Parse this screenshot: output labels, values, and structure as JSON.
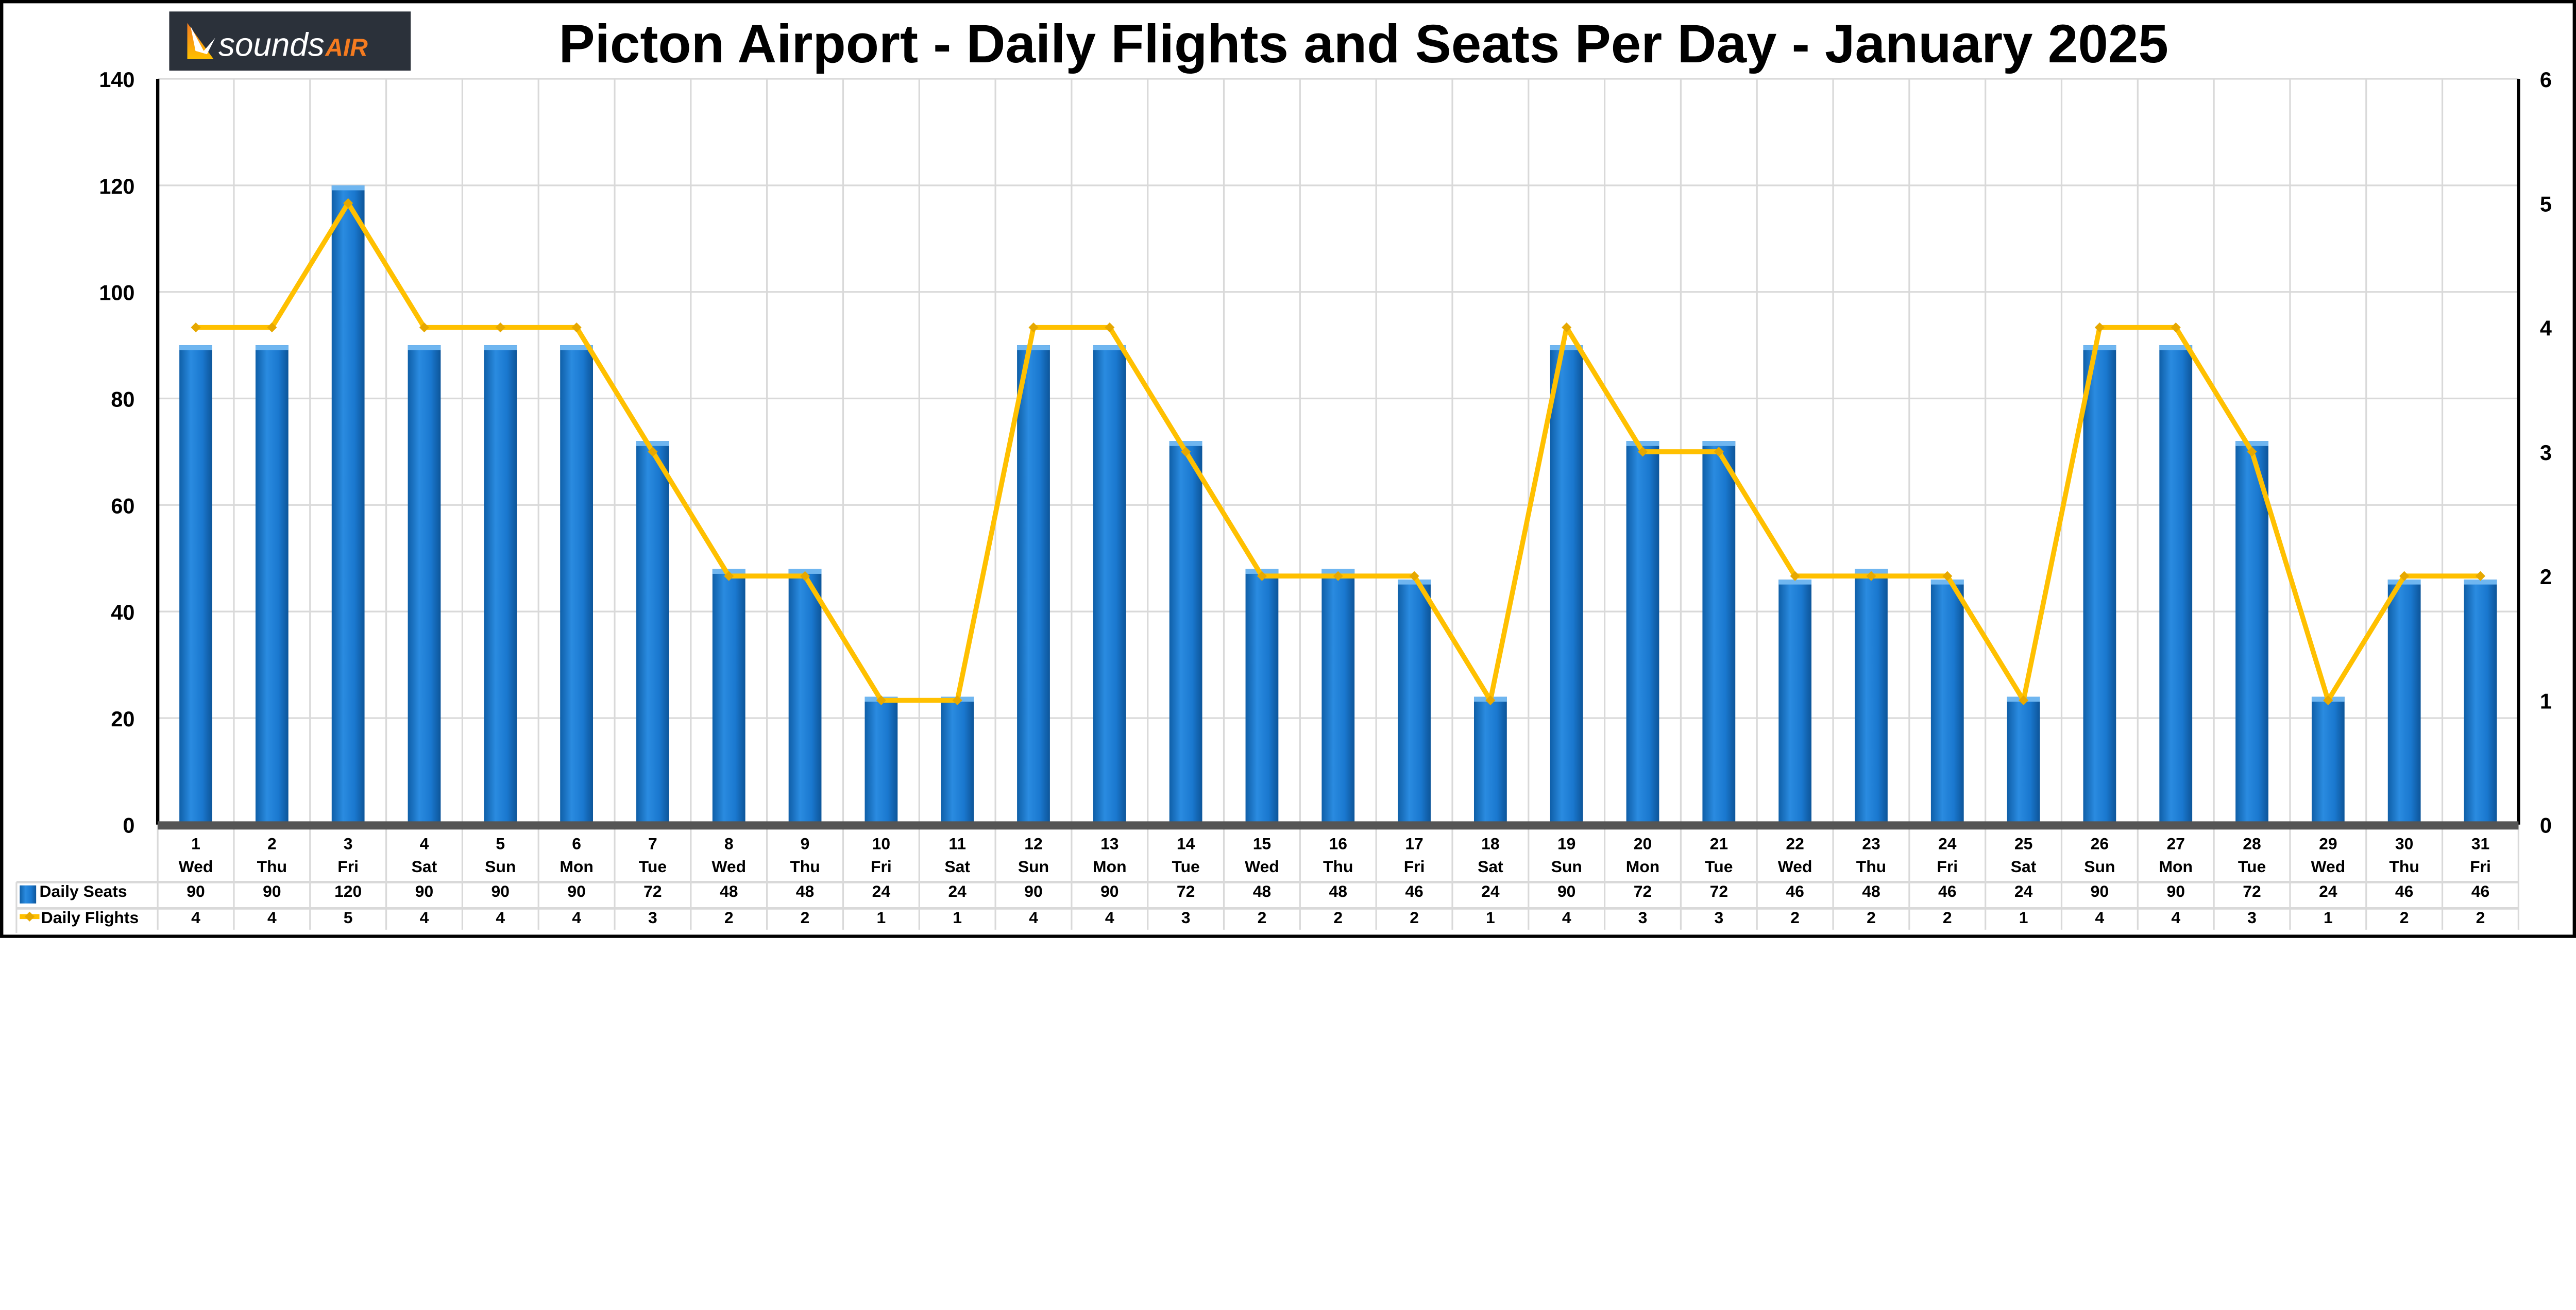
{
  "logo": {
    "text_main": "sounds",
    "text_accent": "AIR",
    "bg_color": "#2b313a",
    "accent_color": "#f47b20"
  },
  "chart_data": {
    "type": "bar+line",
    "title": "Picton Airport - Daily Flights and Seats Per Day - January 2025",
    "categories": [
      "1",
      "2",
      "3",
      "4",
      "5",
      "6",
      "7",
      "8",
      "9",
      "10",
      "11",
      "12",
      "13",
      "14",
      "15",
      "16",
      "17",
      "18",
      "19",
      "20",
      "21",
      "22",
      "23",
      "24",
      "25",
      "26",
      "27",
      "28",
      "29",
      "30",
      "31"
    ],
    "weekdays": [
      "Wed",
      "Thu",
      "Fri",
      "Sat",
      "Sun",
      "Mon",
      "Tue",
      "Wed",
      "Thu",
      "Fri",
      "Sat",
      "Sun",
      "Mon",
      "Tue",
      "Wed",
      "Thu",
      "Fri",
      "Sat",
      "Sun",
      "Mon",
      "Tue",
      "Wed",
      "Thu",
      "Fri",
      "Sat",
      "Sun",
      "Mon",
      "Tue",
      "Wed",
      "Thu",
      "Fri"
    ],
    "series": [
      {
        "name": "Daily Seats",
        "type": "bar",
        "axis": "left",
        "color": "#1a78cf",
        "values": [
          90,
          90,
          120,
          90,
          90,
          90,
          72,
          48,
          48,
          24,
          24,
          90,
          90,
          72,
          48,
          48,
          46,
          24,
          90,
          72,
          72,
          46,
          48,
          46,
          24,
          90,
          90,
          72,
          24,
          46,
          46
        ]
      },
      {
        "name": "Daily Flights",
        "type": "line",
        "axis": "right",
        "color": "#ffc000",
        "values": [
          4,
          4,
          5,
          4,
          4,
          4,
          3,
          2,
          2,
          1,
          1,
          4,
          4,
          3,
          2,
          2,
          2,
          1,
          4,
          3,
          3,
          2,
          2,
          2,
          1,
          4,
          4,
          3,
          1,
          2,
          2
        ]
      }
    ],
    "y_left": {
      "min": 0,
      "max": 140,
      "ticks": [
        "0",
        "20",
        "40",
        "60",
        "80",
        "100",
        "120",
        "140"
      ]
    },
    "y_right": {
      "min": 0,
      "max": 6,
      "ticks": [
        "0",
        "1",
        "2",
        "3",
        "4",
        "5",
        "6"
      ]
    },
    "grid": true,
    "legend": "data-table"
  }
}
